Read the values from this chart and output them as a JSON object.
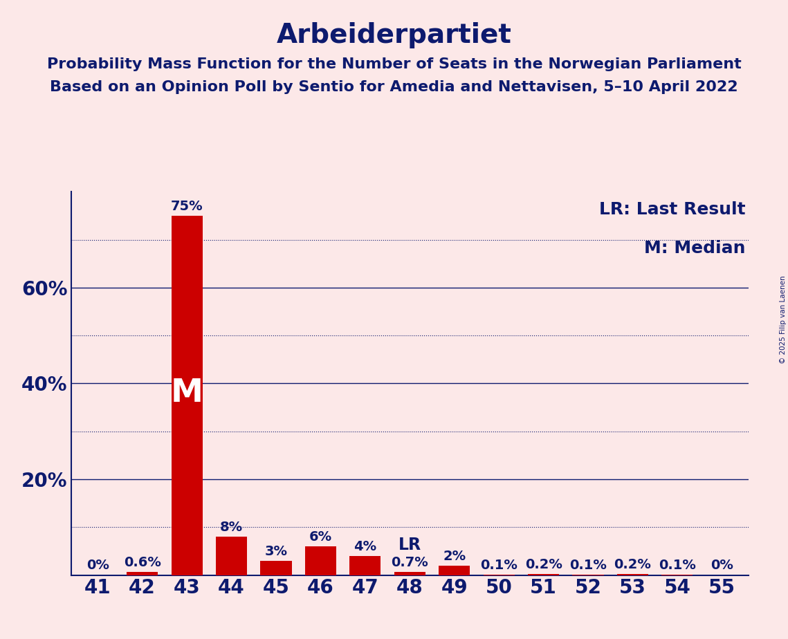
{
  "title": "Arbeiderpartiet",
  "subtitle1": "Probability Mass Function for the Number of Seats in the Norwegian Parliament",
  "subtitle2": "Based on an Opinion Poll by Sentio for Amedia and Nettavisen, 5–10 April 2022",
  "copyright": "© 2025 Filip van Laenen",
  "categories": [
    41,
    42,
    43,
    44,
    45,
    46,
    47,
    48,
    49,
    50,
    51,
    52,
    53,
    54,
    55
  ],
  "values": [
    0.0,
    0.6,
    75.0,
    8.0,
    3.0,
    6.0,
    4.0,
    0.7,
    2.0,
    0.1,
    0.2,
    0.1,
    0.2,
    0.1,
    0.0
  ],
  "labels": [
    "0%",
    "0.6%",
    "75%",
    "8%",
    "3%",
    "6%",
    "4%",
    "0.7%",
    "2%",
    "0.1%",
    "0.2%",
    "0.1%",
    "0.2%",
    "0.1%",
    "0%"
  ],
  "bar_color": "#cc0000",
  "background_color": "#fce8e8",
  "text_color": "#0d1a6e",
  "median_seat": 43,
  "lr_seat": 48,
  "ylim": [
    0,
    80
  ],
  "solid_yticks": [
    20,
    40,
    60
  ],
  "dotted_yticks": [
    10,
    30,
    50,
    70
  ],
  "title_fontsize": 28,
  "subtitle_fontsize": 16,
  "axis_label_fontsize": 20,
  "bar_label_fontsize": 14,
  "legend_fontsize": 18,
  "median_label": "M",
  "lr_label": "LR",
  "legend_lr": "LR: Last Result",
  "legend_m": "M: Median"
}
